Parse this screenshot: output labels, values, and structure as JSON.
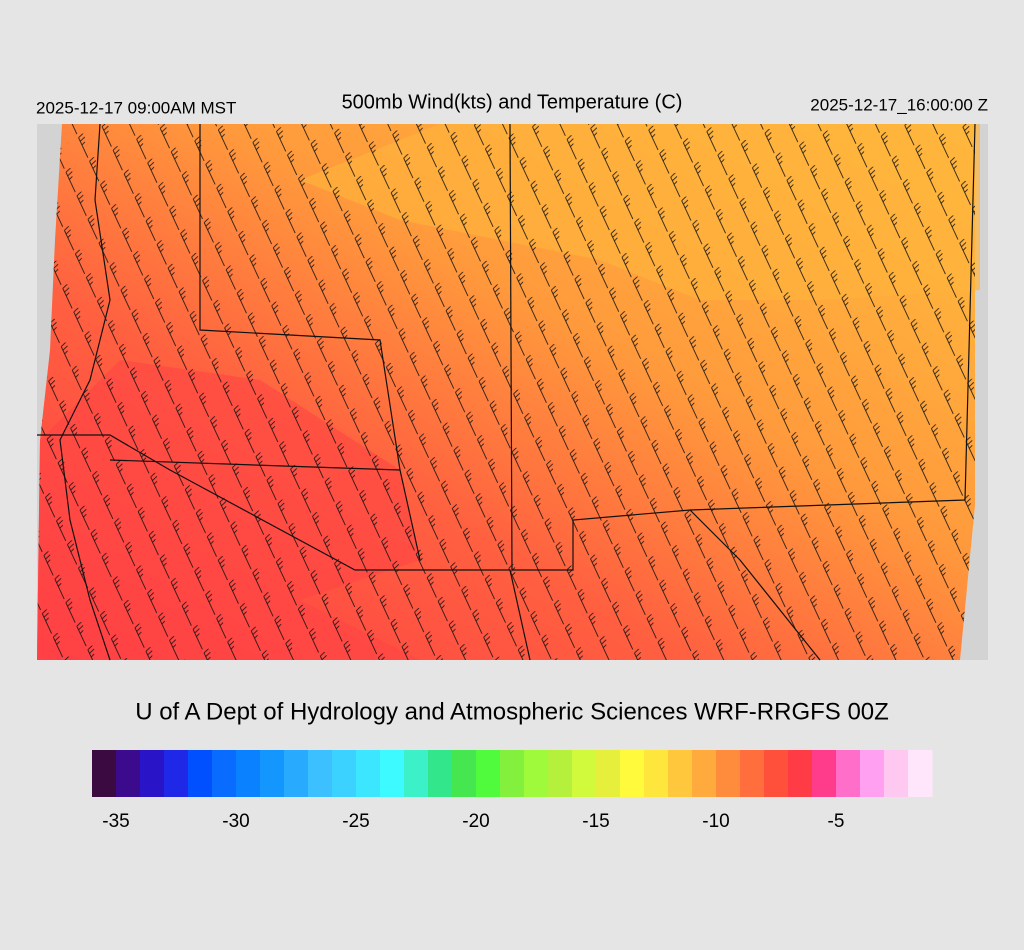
{
  "header": {
    "title": "500mb Wind(kts) and Temperature (C)",
    "left_time": "2025-12-17 09:00AM MST",
    "right_time": "2025-12-17_16:00:00 Z"
  },
  "credit": "U of A Dept of Hydrology and Atmospheric Sciences WRF-RRGFS 00Z",
  "colorbar": {
    "lim": [
      -36,
      -1
    ],
    "ticks": [
      -35,
      -30,
      -25,
      -20,
      -15,
      -10,
      -5
    ],
    "colors": [
      "#3a0a40",
      "#3c0a8c",
      "#2a14c8",
      "#1e28e6",
      "#0050ff",
      "#0a6cff",
      "#0a82ff",
      "#1496ff",
      "#28aaff",
      "#3cc0ff",
      "#3cd2ff",
      "#3ce6ff",
      "#3cfaff",
      "#3cf0c8",
      "#32e68c",
      "#46e650",
      "#50fa3c",
      "#82f03c",
      "#a0fa3c",
      "#b4f03c",
      "#d2fa3c",
      "#e6f03c",
      "#fffa3c",
      "#ffe63c",
      "#ffc83c",
      "#ffaa3c",
      "#ff8c3c",
      "#ff6e3c",
      "#ff503c",
      "#ff3c46",
      "#ff3c8c",
      "#ff6ec8",
      "#ffa0f0",
      "#ffc8f0",
      "#ffe6fa"
    ]
  }
}
